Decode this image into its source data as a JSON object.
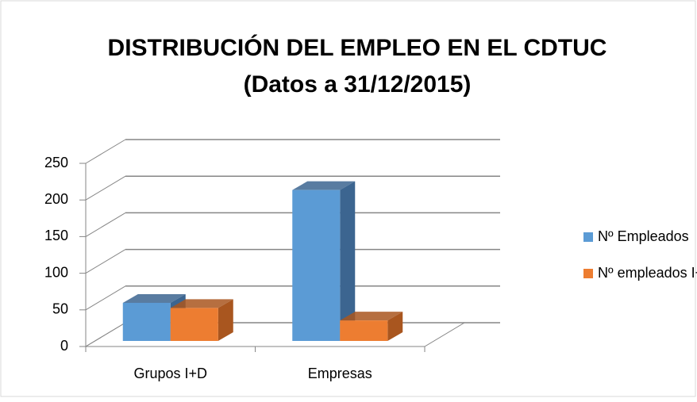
{
  "chart_data": {
    "type": "bar3d",
    "title": [
      "DISTRIBUCIÓN DEL EMPLEO EN EL CDTUC",
      "(Datos a 31/12/2015)"
    ],
    "categories": [
      "Grupos I+D",
      "Empresas"
    ],
    "series": [
      {
        "name": "Nº Empleados",
        "color": "#5b9bd5",
        "side": "#3c6590",
        "values": [
          52,
          206
        ]
      },
      {
        "name": "Nº empleados I+D",
        "color": "#ed7d31",
        "side": "#a9561f",
        "values": [
          45,
          28
        ]
      }
    ],
    "ylim": [
      0,
      250
    ],
    "yticks": [
      0,
      50,
      100,
      150,
      200,
      250
    ],
    "grid": true,
    "legend": "right"
  }
}
